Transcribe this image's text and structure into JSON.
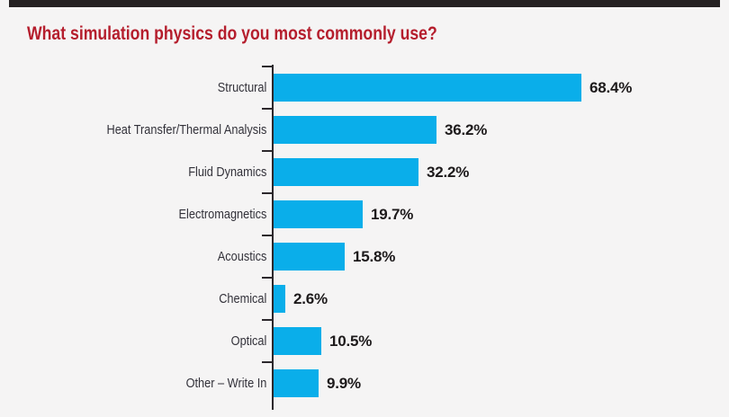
{
  "page": {
    "background": "#f5f4f4",
    "accent_bar_color": "#262223"
  },
  "chart_data": {
    "type": "bar",
    "orientation": "horizontal",
    "title": "What simulation physics do you most commonly use?",
    "title_color": "#b51e2d",
    "categories": [
      "Structural",
      "Heat Transfer/Thermal Analysis",
      "Fluid Dynamics",
      "Electromagnetics",
      "Acoustics",
      "Chemical",
      "Optical",
      "Other – Write In"
    ],
    "values": [
      68.4,
      36.2,
      32.2,
      19.7,
      15.8,
      2.6,
      10.5,
      9.9
    ],
    "value_labels": [
      "68.4%",
      "36.2%",
      "32.2%",
      "19.7%",
      "15.8%",
      "2.6%",
      "10.5%",
      "9.9%"
    ],
    "bar_color": "#0aaeea",
    "axis_color": "#2c282c",
    "xlim": [
      0,
      70
    ],
    "grid": false,
    "legend": false,
    "value_label_position": "right-of-bar",
    "category_label_position": "left-of-axis"
  }
}
